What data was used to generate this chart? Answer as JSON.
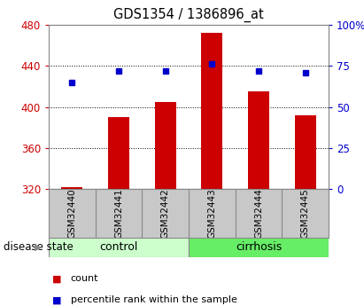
{
  "title": "GDS1354 / 1386896_at",
  "categories": [
    "GSM32440",
    "GSM32441",
    "GSM32442",
    "GSM32443",
    "GSM32444",
    "GSM32445"
  ],
  "bar_values": [
    322,
    390,
    405,
    472,
    415,
    392
  ],
  "percentile_values": [
    65,
    72,
    72,
    76,
    72,
    71
  ],
  "bar_color": "#cc0000",
  "marker_color": "#0000cc",
  "ylim_left": [
    320,
    480
  ],
  "ylim_right": [
    0,
    100
  ],
  "yticks_left": [
    320,
    360,
    400,
    440,
    480
  ],
  "yticks_right": [
    0,
    25,
    50,
    75,
    100
  ],
  "ytick_labels_right": [
    "0",
    "25",
    "50",
    "75",
    "100%"
  ],
  "grid_values": [
    360,
    400,
    440
  ],
  "group_labels": [
    "control",
    "cirrhosis"
  ],
  "group_ranges": [
    [
      0,
      3
    ],
    [
      3,
      6
    ]
  ],
  "group_colors_light": [
    "#ccffcc",
    "#66ee66"
  ],
  "tick_area_bg": "#c8c8c8",
  "bar_bottom": 320,
  "bar_width": 0.45,
  "disease_state_label": "disease state",
  "legend_count_color": "#cc0000",
  "legend_pct_color": "#0000cc",
  "legend_count_label": "count",
  "legend_pct_label": "percentile rank within the sample",
  "left_tick_color": "#cc0000",
  "right_tick_color": "#0000cc",
  "bg_color": "#ffffff"
}
